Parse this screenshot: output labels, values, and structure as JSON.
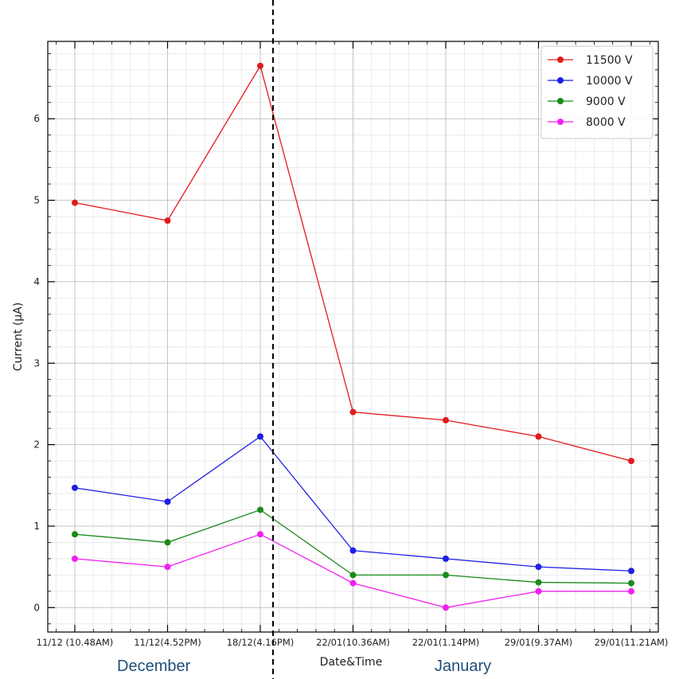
{
  "chart_data": {
    "type": "line",
    "title": "",
    "xlabel": "Date&Time",
    "ylabel": "Current (μA)",
    "categories": [
      "11/12 (10.48AM)",
      "11/12(4.52PM)",
      "18/12(4.16PM)",
      "22/01(10.36AM)",
      "22/01(1.14PM)",
      "29/01(9.37AM)",
      "29/01(11.21AM)"
    ],
    "series": [
      {
        "name": "11500 V",
        "color": "#e31a1c",
        "values": [
          4.97,
          4.75,
          6.65,
          2.4,
          2.3,
          2.1,
          1.8
        ]
      },
      {
        "name": "10000 V",
        "color": "#1f1fe6",
        "values": [
          1.47,
          1.3,
          2.1,
          0.7,
          0.6,
          0.5,
          0.45
        ]
      },
      {
        "name": "9000 V",
        "color": "#1a8a1a",
        "values": [
          0.9,
          0.8,
          1.2,
          0.4,
          0.4,
          0.31,
          0.3
        ]
      },
      {
        "name": "8000 V",
        "color": "#f020f0",
        "values": [
          0.6,
          0.5,
          0.9,
          0.3,
          0.0,
          0.2,
          0.2
        ]
      }
    ],
    "yticks": [
      "0",
      "1",
      "2",
      "3",
      "4",
      "5",
      "6"
    ],
    "ylim": [
      -0.3,
      6.95
    ],
    "grid": true,
    "legend": "top-right",
    "divider": "dashed vertical line between 18/12(4.16PM) and 22/01(10.36AM)",
    "annotations": {
      "left": "December",
      "right": "January"
    }
  }
}
